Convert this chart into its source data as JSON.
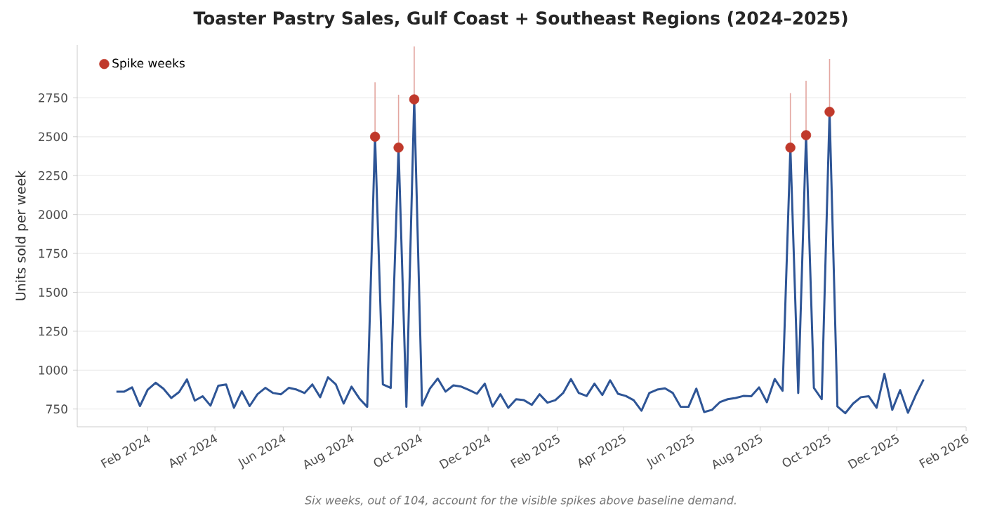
{
  "chart_data": {
    "type": "line",
    "title": "Toaster Pastry Sales, Gulf Coast + Southeast Regions (2024–2025)",
    "ylabel": "Units sold per week",
    "annotations": [
      "Six weeks, out of 104, account for the visible spikes above baseline demand."
    ],
    "x": [
      "2024-01-04",
      "2024-01-11",
      "2024-01-18",
      "2024-01-25",
      "2024-02-01",
      "2024-02-08",
      "2024-02-15",
      "2024-02-22",
      "2024-02-29",
      "2024-03-07",
      "2024-03-14",
      "2024-03-21",
      "2024-03-28",
      "2024-04-04",
      "2024-04-11",
      "2024-04-18",
      "2024-04-25",
      "2024-05-02",
      "2024-05-09",
      "2024-05-16",
      "2024-05-23",
      "2024-05-30",
      "2024-06-06",
      "2024-06-13",
      "2024-06-20",
      "2024-06-27",
      "2024-07-04",
      "2024-07-11",
      "2024-07-18",
      "2024-07-25",
      "2024-08-01",
      "2024-08-08",
      "2024-08-15",
      "2024-08-22",
      "2024-08-29",
      "2024-09-05",
      "2024-09-12",
      "2024-09-19",
      "2024-09-26",
      "2024-10-03",
      "2024-10-10",
      "2024-10-17",
      "2024-10-24",
      "2024-10-31",
      "2024-11-07",
      "2024-11-14",
      "2024-11-21",
      "2024-11-28",
      "2024-12-05",
      "2024-12-12",
      "2024-12-19",
      "2024-12-26",
      "2025-01-02",
      "2025-01-09",
      "2025-01-16",
      "2025-01-23",
      "2025-01-30",
      "2025-02-06",
      "2025-02-13",
      "2025-02-20",
      "2025-02-27",
      "2025-03-06",
      "2025-03-13",
      "2025-03-20",
      "2025-03-27",
      "2025-04-03",
      "2025-04-10",
      "2025-04-17",
      "2025-04-24",
      "2025-05-01",
      "2025-05-08",
      "2025-05-15",
      "2025-05-22",
      "2025-05-29",
      "2025-06-05",
      "2025-06-12",
      "2025-06-19",
      "2025-06-26",
      "2025-07-03",
      "2025-07-10",
      "2025-07-17",
      "2025-07-24",
      "2025-07-31",
      "2025-08-07",
      "2025-08-14",
      "2025-08-21",
      "2025-08-28",
      "2025-09-04",
      "2025-09-11",
      "2025-09-18",
      "2025-09-25",
      "2025-10-02",
      "2025-10-09",
      "2025-10-16",
      "2025-10-23",
      "2025-10-30",
      "2025-11-06",
      "2025-11-13",
      "2025-11-20",
      "2025-11-27",
      "2025-12-04",
      "2025-12-11",
      "2025-12-18",
      "2025-12-25"
    ],
    "series": [
      {
        "color": "#2e5596",
        "marker": "none",
        "values": [
          862,
          862,
          889,
          769,
          875,
          919,
          881,
          821,
          859,
          940,
          804,
          832,
          772,
          900,
          908,
          758,
          864,
          769,
          845,
          886,
          853,
          845,
          886,
          875,
          853,
          908,
          826,
          954,
          908,
          785,
          894,
          818,
          764,
          2500,
          908,
          886,
          2430,
          764,
          2740,
          772,
          881,
          946,
          862,
          902,
          894,
          872,
          848,
          913,
          766,
          845,
          758,
          813,
          807,
          777,
          845,
          791,
          807,
          853,
          943,
          853,
          834,
          913,
          840,
          935,
          848,
          834,
          807,
          739,
          853,
          875,
          883,
          853,
          764,
          764,
          881,
          731,
          745,
          794,
          813,
          821,
          834,
          832,
          889,
          794,
          943,
          867,
          2430,
          853,
          2510,
          886,
          813,
          2660,
          766,
          723,
          785,
          826,
          832,
          758,
          976,
          745,
          872,
          726,
          840,
          940
        ]
      },
      {
        "type": "scatter",
        "name": "Spike weeks",
        "color": "#c0392b",
        "marker": "circle",
        "x": [
          "2024-08-22",
          "2024-09-12",
          "2024-09-26",
          "2025-08-28",
          "2025-09-11",
          "2025-10-02"
        ],
        "values": [
          2500,
          2430,
          2740,
          2430,
          2510,
          2660
        ],
        "errors": [
          [
            2500,
            2850
          ],
          [
            2430,
            2770
          ],
          [
            2740,
            3080
          ],
          [
            2430,
            2780
          ],
          [
            2510,
            2860
          ],
          [
            2660,
            3000
          ]
        ]
      }
    ],
    "xlim": [
      "2023-11-30",
      "2026-02-01"
    ],
    "xticks": [
      {
        "value": "2024-02-01",
        "label": "Feb 2024"
      },
      {
        "value": "2024-04-01",
        "label": "Apr 2024"
      },
      {
        "value": "2024-06-01",
        "label": "Jun 2024"
      },
      {
        "value": "2024-08-01",
        "label": "Aug 2024"
      },
      {
        "value": "2024-10-01",
        "label": "Oct 2024"
      },
      {
        "value": "2024-12-01",
        "label": "Dec 2024"
      },
      {
        "value": "2025-02-01",
        "label": "Feb 2025"
      },
      {
        "value": "2025-04-01",
        "label": "Apr 2025"
      },
      {
        "value": "2025-06-01",
        "label": "Jun 2025"
      },
      {
        "value": "2025-08-01",
        "label": "Aug 2025"
      },
      {
        "value": "2025-10-01",
        "label": "Oct 2025"
      },
      {
        "value": "2025-12-01",
        "label": "Dec 2025"
      },
      {
        "value": "2026-02-01",
        "label": "Feb 2026"
      }
    ],
    "ylim": [
      636,
      3090
    ],
    "yticks": [
      750,
      1000,
      1250,
      1500,
      1750,
      2000,
      2250,
      2500,
      2750
    ],
    "grid": "y",
    "legend": "top left"
  }
}
